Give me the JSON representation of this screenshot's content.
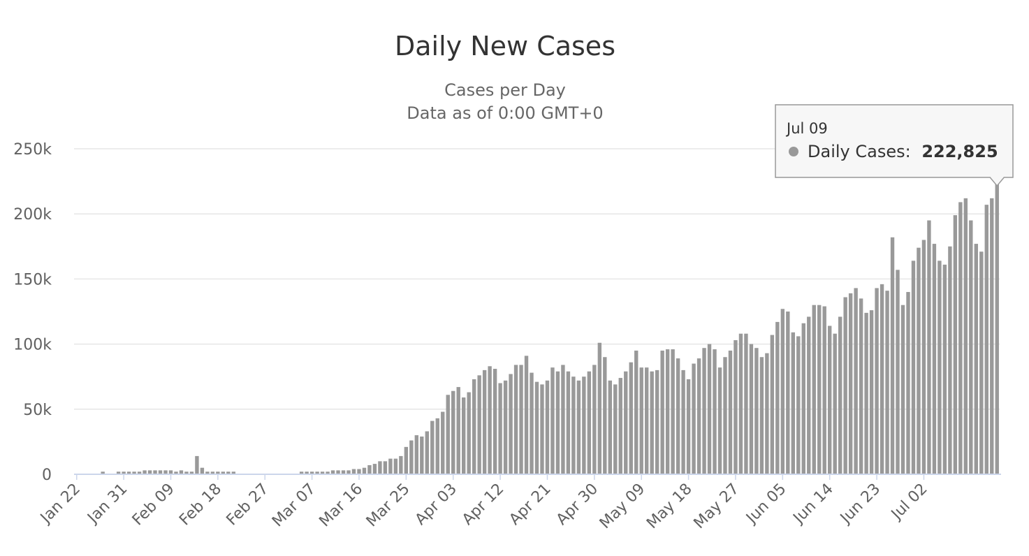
{
  "chart_data": {
    "type": "bar",
    "title": "Daily New Cases",
    "subtitle_lines": [
      "Cases per Day",
      "Data as of 0:00 GMT+0"
    ],
    "series_name": "Daily Cases",
    "bar_color": "#999999",
    "ylim": [
      0,
      250000
    ],
    "yticks": [
      {
        "value": 0,
        "label": "0"
      },
      {
        "value": 50000,
        "label": "50k"
      },
      {
        "value": 100000,
        "label": "100k"
      },
      {
        "value": 150000,
        "label": "150k"
      },
      {
        "value": 200000,
        "label": "200k"
      },
      {
        "value": 250000,
        "label": "250k"
      }
    ],
    "grid": true,
    "x_labels": [
      "Jan 22",
      "Jan 31",
      "Feb 09",
      "Feb 18",
      "Feb 27",
      "Mar 07",
      "Mar 16",
      "Mar 25",
      "Apr 03",
      "Apr 12",
      "Apr 21",
      "Apr 30",
      "May 09",
      "May 18",
      "May 27",
      "Jun 05",
      "Jun 14",
      "Jun 23",
      "Jul 02"
    ],
    "x_label_every": 9,
    "values": [
      0,
      0,
      0,
      0,
      0,
      2000,
      0,
      0,
      2000,
      2000,
      2000,
      2000,
      2000,
      3000,
      3000,
      3000,
      3000,
      3000,
      3000,
      2000,
      3000,
      2000,
      2000,
      14000,
      5000,
      2000,
      2000,
      2000,
      2000,
      2000,
      2000,
      0,
      0,
      0,
      0,
      0,
      0,
      0,
      0,
      0,
      0,
      0,
      0,
      2000,
      2000,
      2000,
      2000,
      2000,
      2000,
      3000,
      3000,
      3000,
      3000,
      4000,
      4000,
      5000,
      7000,
      8000,
      10000,
      10000,
      12000,
      12000,
      14000,
      21000,
      26000,
      30000,
      29000,
      33000,
      41000,
      43000,
      48000,
      61000,
      64000,
      67000,
      59000,
      63000,
      73000,
      76000,
      80000,
      83000,
      81000,
      70000,
      72000,
      77000,
      84000,
      84000,
      91000,
      78000,
      71000,
      69000,
      72000,
      82000,
      79000,
      84000,
      79000,
      75000,
      72000,
      75000,
      79000,
      84000,
      101000,
      90000,
      72000,
      69000,
      74000,
      79000,
      86000,
      95000,
      82000,
      82000,
      79000,
      80000,
      95000,
      96000,
      96000,
      89000,
      80000,
      73000,
      85000,
      89000,
      97000,
      100000,
      96000,
      82000,
      90000,
      95000,
      103000,
      108000,
      108000,
      100000,
      97000,
      90000,
      93000,
      107000,
      117000,
      127000,
      125000,
      109000,
      106000,
      116000,
      121000,
      130000,
      130000,
      129000,
      114000,
      108000,
      121000,
      136000,
      139000,
      143000,
      135000,
      124000,
      126000,
      143000,
      146000,
      141000,
      182000,
      157000,
      130000,
      140000,
      164000,
      174000,
      180000,
      195000,
      177000,
      164000,
      161000,
      175000,
      199000,
      209000,
      212000,
      195000,
      177000,
      171000,
      207000,
      212000,
      222825
    ],
    "tooltip": {
      "date": "Jul 09",
      "label": "Daily Cases:",
      "value": "222,825"
    }
  }
}
